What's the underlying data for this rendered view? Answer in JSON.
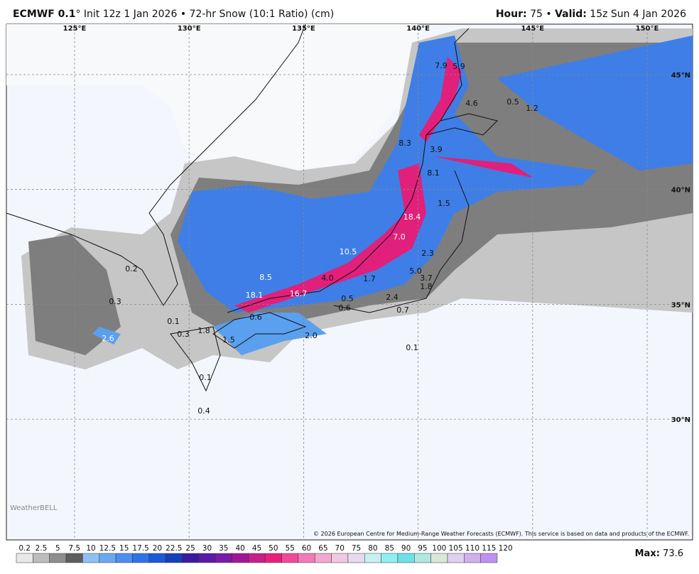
{
  "header": {
    "model": "ECMWF 0.1",
    "description": "° Init 12z 1 Jan 2026 • 72-hr Snow (10:1 Ratio) (cm)",
    "hour_label": "Hour:",
    "hour": "75",
    "valid_label": "Valid:",
    "valid": "15z Sun 4 Jan 2026"
  },
  "map": {
    "lon_labels": [
      "125°E",
      "130°E",
      "135°E",
      "140°E",
      "145°E",
      "150°E"
    ],
    "lat_labels": [
      "45°N",
      "40°N",
      "35°N",
      "30°N"
    ],
    "point_labels": [
      "7.9",
      "5.9",
      "4.6",
      "0.5",
      "1.2",
      "8.3",
      "3.9",
      "8.1",
      "1.5",
      "18.4",
      "7.0",
      "10.5",
      "2.3",
      "5.0",
      "3.7",
      "8.5",
      "4.0",
      "1.7",
      "1.8",
      "18.1",
      "16.7",
      "0.5",
      "2.4",
      "0.6",
      "0.7",
      "0.2",
      "0.3",
      "0.6",
      "1.8",
      "0.3",
      "0.1",
      "1.5",
      "2.0",
      "0.1",
      "0.1",
      "0.4",
      "2.6"
    ],
    "copyright": "© 2026 European Centre for Medium-Range Weather Forecasts (ECMWF). This service is based on data and products of the ECMWF.",
    "logo": "WeatherBELL"
  },
  "colorbar": {
    "levels": [
      0.2,
      2.5,
      5,
      7.5,
      10,
      12.5,
      15,
      17.5,
      20,
      22.5,
      25,
      30,
      35,
      40,
      45,
      50,
      55,
      60,
      65,
      70,
      75,
      80,
      85,
      90,
      95,
      100,
      105,
      110,
      115,
      120
    ],
    "colors": [
      "#e8e8e8",
      "#bdbdbd",
      "#8e8e8e",
      "#5e5e5e",
      "#8fc2f2",
      "#6aa8f0",
      "#4a8ff0",
      "#2f73e8",
      "#1d58d8",
      "#1540b8",
      "#3a1aa0",
      "#5a1aa8",
      "#7a1aa8",
      "#a01898",
      "#c81e8a",
      "#e8207a",
      "#f04a9a",
      "#f27ab8",
      "#f2a8d0",
      "#f0c8e0",
      "#e8d8f0",
      "#c8f0f0",
      "#90f0f0",
      "#6ee0e8",
      "#b0e8e0",
      "#d8e8d8",
      "#e0d0f0",
      "#d0b0f0",
      "#c090f0"
    ],
    "max_label": "Max:",
    "max_value": "73.6"
  }
}
